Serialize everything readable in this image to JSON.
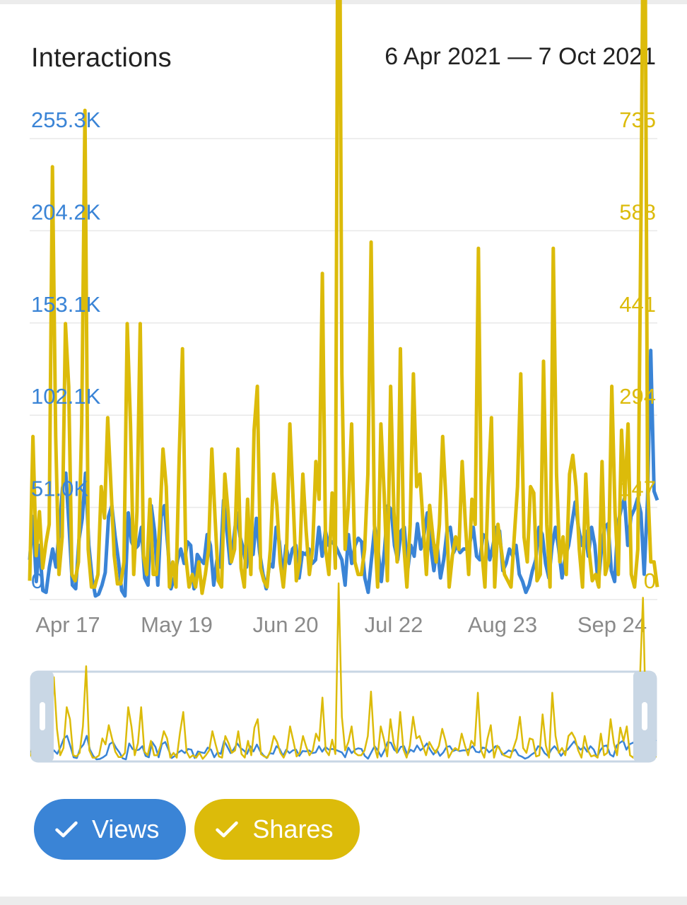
{
  "header": {
    "title": "Interactions",
    "date_range": "6 Apr 2021 — 7 Oct 2021"
  },
  "colors": {
    "views": "#3a84d6",
    "shares": "#dcbb0a",
    "grid": "#e8e8e8",
    "xtick": "#8a8a8a"
  },
  "chart_data": {
    "type": "line",
    "title": "Interactions",
    "x_start": "2021-04-06",
    "x_end": "2021-10-07",
    "x_ticks": [
      "Apr 17",
      "May 19",
      "Jun 20",
      "Jul 22",
      "Aug 23",
      "Sep 24"
    ],
    "y_left_ticks": [
      "0",
      "51.0K",
      "102.1K",
      "153.1K",
      "204.2K",
      "255.3K"
    ],
    "y_right_ticks": [
      "0",
      "147",
      "294",
      "441",
      "588",
      "735"
    ],
    "y_left_lim": [
      0,
      255300
    ],
    "y_right_lim": [
      0,
      735
    ],
    "grid": true,
    "series": [
      {
        "name": "Views",
        "axis": "left",
        "values": [
          22000,
          46000,
          10000,
          30000,
          5000,
          4000,
          18000,
          28000,
          18000,
          38000,
          62000,
          70000,
          40000,
          8000,
          6000,
          33000,
          45000,
          70000,
          30000,
          12000,
          2000,
          3000,
          8000,
          15000,
          46000,
          52000,
          35000,
          22000,
          5000,
          2000,
          48000,
          32000,
          28000,
          30000,
          40000,
          12000,
          8000,
          52000,
          38000,
          8000,
          46000,
          52000,
          30000,
          6000,
          12000,
          22000,
          28000,
          20000,
          32000,
          30000,
          6000,
          25000,
          22000,
          20000,
          36000,
          30000,
          8000,
          22000,
          18000,
          55000,
          38000,
          20000,
          32000,
          48000,
          35000,
          28000,
          18000,
          40000,
          25000,
          45000,
          26000,
          14000,
          6000,
          20000,
          18000,
          40000,
          32000,
          12000,
          30000,
          20000,
          28000,
          30000,
          12000,
          26000,
          25000,
          28000,
          20000,
          22000,
          40000,
          24000,
          38000,
          30000,
          32000,
          30000,
          26000,
          22000,
          8000,
          36000,
          20000,
          30000,
          34000,
          32000,
          12000,
          4000,
          22000,
          40000,
          28000,
          10000,
          28000,
          52000,
          50000,
          30000,
          22000,
          38000,
          40000,
          16000,
          30000,
          24000,
          42000,
          28000,
          36000,
          48000,
          30000,
          16000,
          30000,
          12000,
          22000,
          38000,
          40000,
          26000,
          30000,
          26000,
          28000,
          28000,
          32000,
          40000,
          24000,
          22000,
          36000,
          34000,
          22000,
          30000,
          40000,
          38000,
          16000,
          20000,
          28000,
          24000,
          30000,
          14000,
          10000,
          4000,
          8000,
          16000,
          22000,
          40000,
          36000,
          20000,
          12000,
          30000,
          40000,
          28000,
          12000,
          24000,
          30000,
          42000,
          54000,
          40000,
          30000,
          38000,
          24000,
          40000,
          30000,
          8000,
          28000,
          40000,
          42000,
          16000,
          10000,
          42000,
          50000,
          56000,
          30000,
          46000,
          50000,
          56000,
          48000,
          14000,
          55000,
          138000,
          60000,
          55000
        ]
      },
      {
        "name": "Shares",
        "axis": "right",
        "values": [
          30,
          260,
          70,
          140,
          50,
          90,
          120,
          690,
          260,
          40,
          100,
          440,
          340,
          40,
          30,
          60,
          280,
          780,
          80,
          20,
          20,
          40,
          180,
          130,
          290,
          180,
          70,
          25,
          25,
          60,
          440,
          280,
          40,
          140,
          440,
          70,
          40,
          160,
          40,
          40,
          120,
          240,
          180,
          20,
          60,
          20,
          230,
          400,
          70,
          20,
          40,
          20,
          60,
          10,
          40,
          80,
          240,
          130,
          30,
          20,
          200,
          140,
          60,
          80,
          240,
          50,
          20,
          160,
          40,
          270,
          340,
          50,
          30,
          20,
          80,
          200,
          150,
          60,
          20,
          80,
          280,
          160,
          30,
          60,
          200,
          110,
          40,
          80,
          220,
          160,
          520,
          80,
          40,
          170,
          50,
          1470,
          360,
          80,
          150,
          280,
          60,
          40,
          40,
          80,
          200,
          570,
          120,
          20,
          280,
          170,
          30,
          340,
          140,
          60,
          400,
          90,
          20,
          120,
          360,
          180,
          200,
          120,
          40,
          150,
          100,
          60,
          120,
          260,
          160,
          20,
          70,
          100,
          80,
          220,
          120,
          40,
          160,
          120,
          560,
          80,
          20,
          180,
          290,
          20,
          120,
          80,
          40,
          30,
          20,
          100,
          180,
          360,
          100,
          60,
          180,
          170,
          30,
          40,
          380,
          120,
          20,
          560,
          200,
          60,
          100,
          40,
          200,
          230,
          180,
          80,
          20,
          200,
          80,
          30,
          40,
          20,
          220,
          40,
          60,
          340,
          140,
          40,
          270,
          160,
          280,
          40,
          20,
          80,
          620,
          1350,
          190,
          60,
          60,
          20
        ]
      }
    ]
  },
  "navigator": {
    "left_handle": "range-start-handle",
    "right_handle": "range-end-handle"
  },
  "toggles": [
    {
      "label": "Views",
      "icon": "check-icon",
      "color": "#3a84d6",
      "selected": true
    },
    {
      "label": "Shares",
      "icon": "check-icon",
      "color": "#dcbb0a",
      "selected": true
    }
  ]
}
